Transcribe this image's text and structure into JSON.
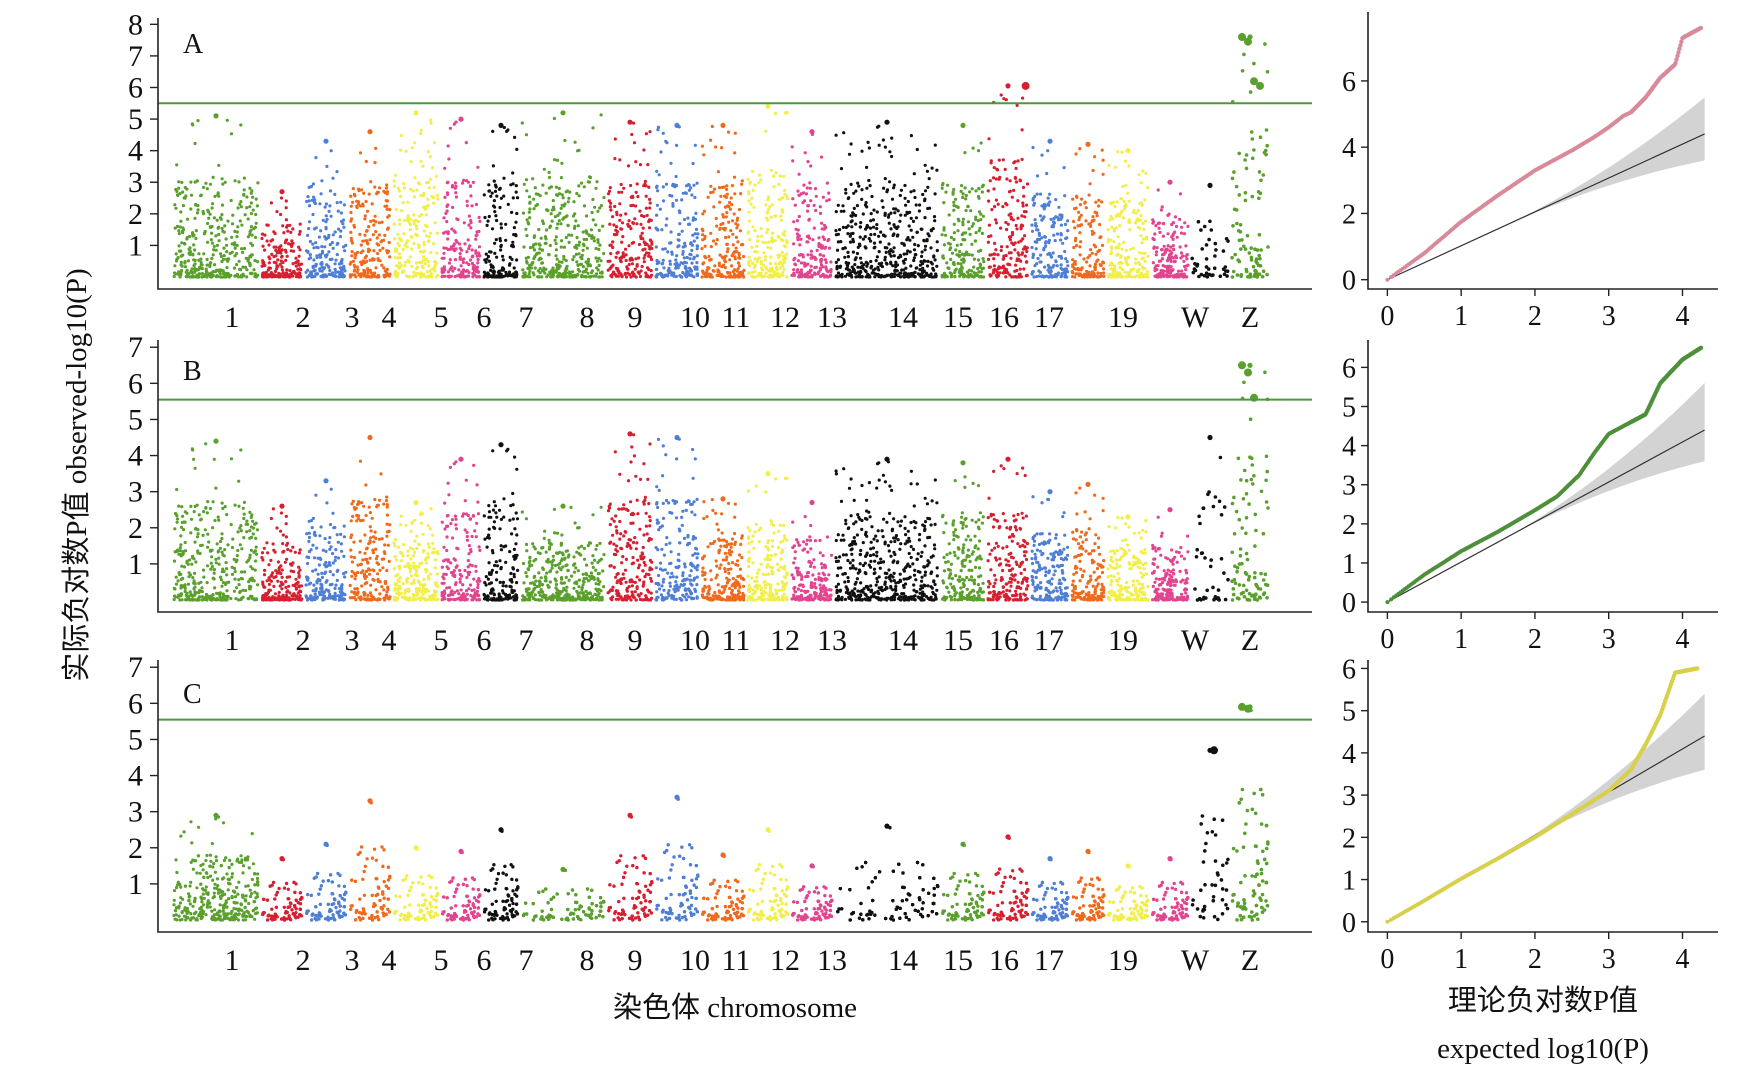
{
  "figure": {
    "y_axis_label": "实际负对数P值 observed-log10(P)",
    "x_axis_label": "染色体 chromosome",
    "qq_x_label_line1": "理论负对数P值",
    "qq_x_label_line2": "expected log10(P)"
  },
  "chromosome_labels": [
    "1",
    "2",
    "3",
    "4",
    "5",
    "6",
    "7",
    "8",
    "9",
    "10",
    "11",
    "12",
    "13",
    "14",
    "15",
    "16",
    "17",
    "19",
    "W",
    "Z"
  ],
  "chromosome_colors": [
    "#5aa02c",
    "#d62031",
    "#4f7fd4",
    "#ef6a1d",
    "#f2ee4a",
    "#e2448f",
    "#111111",
    "#5aa02c",
    "#d62031",
    "#4f7fd4",
    "#ef6a1d",
    "#f2ee4a",
    "#e2448f",
    "#111111",
    "#5aa02c",
    "#d62031",
    "#4f7fd4",
    "#ef6a1d",
    "#f2ee4a",
    "#e2448f",
    "#111111",
    "#5aa02c"
  ],
  "chart_data": [
    {
      "type": "scatter",
      "subtype": "manhattan",
      "panel": "A",
      "ylim": [
        0,
        8.2
      ],
      "yticks": [
        1,
        2,
        3,
        4,
        5,
        6,
        7,
        8
      ],
      "threshold": 5.5,
      "threshold_color": "#4a9a3c",
      "peak_by_chromosome": {
        "1": 5.1,
        "2": 2.7,
        "3": 4.3,
        "4": 4.6,
        "5": 5.2,
        "6": 5.0,
        "7": 4.8,
        "8": 5.2,
        "9": 4.9,
        "10": 4.8,
        "11": 4.8,
        "12": 5.4,
        "13": 4.6,
        "14": 4.9,
        "15": 4.8,
        "16": 6.05,
        "17": 4.3,
        "18": 4.2,
        "19": 4.0,
        "20": 3.0,
        "W": 2.9,
        "Z": 7.6
      },
      "top_hits": [
        {
          "chromosome": "Z",
          "y": 7.6
        },
        {
          "chromosome": "Z",
          "y": 7.45
        },
        {
          "chromosome": "Z",
          "y": 6.2
        },
        {
          "chromosome": "Z",
          "y": 6.05
        },
        {
          "chromosome": "16",
          "y": 6.05
        }
      ]
    },
    {
      "type": "scatter",
      "subtype": "manhattan",
      "panel": "B",
      "ylim": [
        0,
        7.2
      ],
      "yticks": [
        1,
        2,
        3,
        4,
        5,
        6,
        7
      ],
      "threshold": 5.55,
      "threshold_color": "#4a9a3c",
      "peak_by_chromosome": {
        "1": 4.4,
        "2": 2.6,
        "3": 3.3,
        "4": 4.5,
        "5": 2.7,
        "6": 3.9,
        "7": 4.3,
        "8": 2.6,
        "9": 4.6,
        "10": 4.5,
        "11": 2.8,
        "12": 3.5,
        "13": 2.7,
        "14": 3.9,
        "15": 3.8,
        "16": 3.9,
        "17": 3.0,
        "18": 3.2,
        "19": 2.3,
        "20": 2.5,
        "W": 4.5,
        "Z": 6.5
      },
      "top_hits": [
        {
          "chromosome": "Z",
          "y": 6.5
        },
        {
          "chromosome": "Z",
          "y": 6.3
        },
        {
          "chromosome": "Z",
          "y": 5.6
        }
      ]
    },
    {
      "type": "scatter",
      "subtype": "manhattan",
      "panel": "C",
      "ylim": [
        0,
        7.2
      ],
      "yticks": [
        1,
        2,
        3,
        4,
        5,
        6,
        7
      ],
      "threshold": 5.55,
      "threshold_color": "#4a9a3c",
      "peak_by_chromosome": {
        "1": 2.9,
        "2": 1.7,
        "3": 2.1,
        "4": 3.3,
        "5": 2.0,
        "6": 1.9,
        "7": 2.5,
        "8": 1.4,
        "9": 2.9,
        "10": 3.4,
        "11": 1.8,
        "12": 2.5,
        "13": 1.5,
        "14": 2.6,
        "15": 2.1,
        "16": 2.3,
        "17": 1.7,
        "18": 1.9,
        "19": 1.5,
        "20": 1.7,
        "W": 4.7,
        "Z": 5.9
      },
      "top_hits": [
        {
          "chromosome": "Z",
          "y": 5.9
        },
        {
          "chromosome": "Z",
          "y": 5.85
        },
        {
          "chromosome": "W",
          "y": 4.7
        }
      ]
    },
    {
      "type": "scatter",
      "subtype": "qq",
      "panel": "A",
      "color": "#d98a9a",
      "xlim": [
        -0.1,
        4.4
      ],
      "ylim": [
        -0.1,
        7.9
      ],
      "xticks": [
        0,
        1,
        2,
        3,
        4
      ],
      "yticks": [
        0,
        2,
        4,
        6
      ],
      "observed_curve": [
        [
          0,
          0
        ],
        [
          0.5,
          0.8
        ],
        [
          1,
          1.75
        ],
        [
          1.5,
          2.55
        ],
        [
          2,
          3.3
        ],
        [
          2.5,
          3.9
        ],
        [
          2.8,
          4.3
        ],
        [
          3,
          4.6
        ],
        [
          3.2,
          4.95
        ],
        [
          3.3,
          5.05
        ],
        [
          3.5,
          5.5
        ],
        [
          3.7,
          6.1
        ],
        [
          3.9,
          6.5
        ],
        [
          4.0,
          7.3
        ],
        [
          4.25,
          7.6
        ]
      ],
      "expected_line": [
        [
          0,
          0
        ],
        [
          4.3,
          4.4
        ]
      ],
      "ci_upper_end": 5.5,
      "ci_lower_end": 3.6
    },
    {
      "type": "scatter",
      "subtype": "qq",
      "panel": "B",
      "color": "#4e8f3a",
      "xlim": [
        -0.1,
        4.4
      ],
      "ylim": [
        -0.1,
        6.7
      ],
      "xticks": [
        0,
        1,
        2,
        3,
        4
      ],
      "yticks": [
        0,
        1,
        2,
        3,
        4,
        5,
        6
      ],
      "observed_curve": [
        [
          0,
          0
        ],
        [
          0.5,
          0.7
        ],
        [
          1,
          1.3
        ],
        [
          1.5,
          1.8
        ],
        [
          2,
          2.35
        ],
        [
          2.3,
          2.7
        ],
        [
          2.6,
          3.25
        ],
        [
          2.8,
          3.8
        ],
        [
          3.0,
          4.3
        ],
        [
          3.2,
          4.5
        ],
        [
          3.5,
          4.8
        ],
        [
          3.7,
          5.6
        ],
        [
          4.0,
          6.2
        ],
        [
          4.25,
          6.5
        ]
      ],
      "expected_line": [
        [
          0,
          0
        ],
        [
          4.3,
          4.4
        ]
      ],
      "ci_upper_end": 5.6,
      "ci_lower_end": 3.6
    },
    {
      "type": "scatter",
      "subtype": "qq",
      "panel": "C",
      "color": "#d8d04a",
      "xlim": [
        -0.1,
        4.4
      ],
      "ylim": [
        -0.1,
        6.2
      ],
      "xticks": [
        0,
        1,
        2,
        3,
        4
      ],
      "yticks": [
        0,
        1,
        2,
        3,
        4,
        5,
        6
      ],
      "observed_curve": [
        [
          0,
          0
        ],
        [
          0.5,
          0.5
        ],
        [
          1,
          1.02
        ],
        [
          1.5,
          1.5
        ],
        [
          2,
          2.0
        ],
        [
          2.5,
          2.55
        ],
        [
          3,
          3.1
        ],
        [
          3.3,
          3.6
        ],
        [
          3.5,
          4.2
        ],
        [
          3.7,
          4.9
        ],
        [
          3.9,
          5.9
        ],
        [
          4.2,
          6.0
        ]
      ],
      "expected_line": [
        [
          0,
          0
        ],
        [
          4.3,
          4.4
        ]
      ],
      "ci_upper_end": 5.4,
      "ci_lower_end": 3.6
    }
  ]
}
